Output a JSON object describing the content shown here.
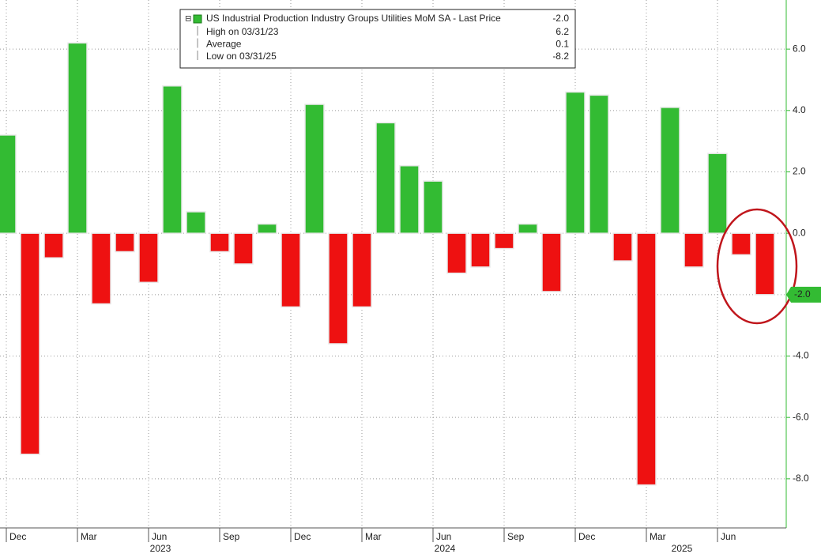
{
  "chart_data": {
    "type": "bar",
    "legend": {
      "title": "US Industrial Production Industry Groups Utilities MoM SA - Last Price",
      "last": "-2.0",
      "stats": [
        {
          "label": "High on 03/31/23",
          "value": "6.2"
        },
        {
          "label": "Average",
          "value": "0.1"
        },
        {
          "label": "Low on 03/31/25",
          "value": "-8.2"
        }
      ]
    },
    "categories": [
      "Dec",
      null,
      null,
      "Mar",
      null,
      null,
      "Jun",
      null,
      null,
      "Sep",
      null,
      null,
      "Dec",
      null,
      null,
      "Mar",
      null,
      null,
      "Jun",
      null,
      null,
      "Sep",
      null,
      null,
      "Dec",
      null,
      null,
      "Mar",
      null,
      null,
      "Jun",
      null,
      null
    ],
    "years": [
      "2023",
      "2024",
      "2025"
    ],
    "values": [
      3.2,
      -7.2,
      -0.8,
      6.2,
      -2.3,
      -0.6,
      -1.6,
      4.8,
      0.7,
      -0.6,
      -1.0,
      0.3,
      -2.4,
      4.2,
      -3.6,
      -2.4,
      3.6,
      2.2,
      1.7,
      -1.3,
      -1.1,
      -0.5,
      0.3,
      -1.9,
      4.6,
      4.5,
      -0.9,
      -8.2,
      4.1,
      -1.1,
      2.6,
      -0.7,
      -2.0
    ],
    "positive_color": "#33bb33",
    "negative_color": "#ee1111",
    "last_price": {
      "value": -2.0,
      "label": "-2.0"
    },
    "ylim": [
      -9.6,
      7.6
    ],
    "yticks": [
      {
        "value": 6,
        "label": "6.0"
      },
      {
        "value": 4,
        "label": "4.0"
      },
      {
        "value": 2,
        "label": "2.0"
      },
      {
        "value": 0,
        "label": "0.0"
      },
      {
        "value": -2,
        "label": "-2.0"
      },
      {
        "value": -4,
        "label": "-4.0"
      },
      {
        "value": -6,
        "label": "-6.0"
      },
      {
        "value": -8,
        "label": "-8.0"
      }
    ],
    "grid": true
  }
}
